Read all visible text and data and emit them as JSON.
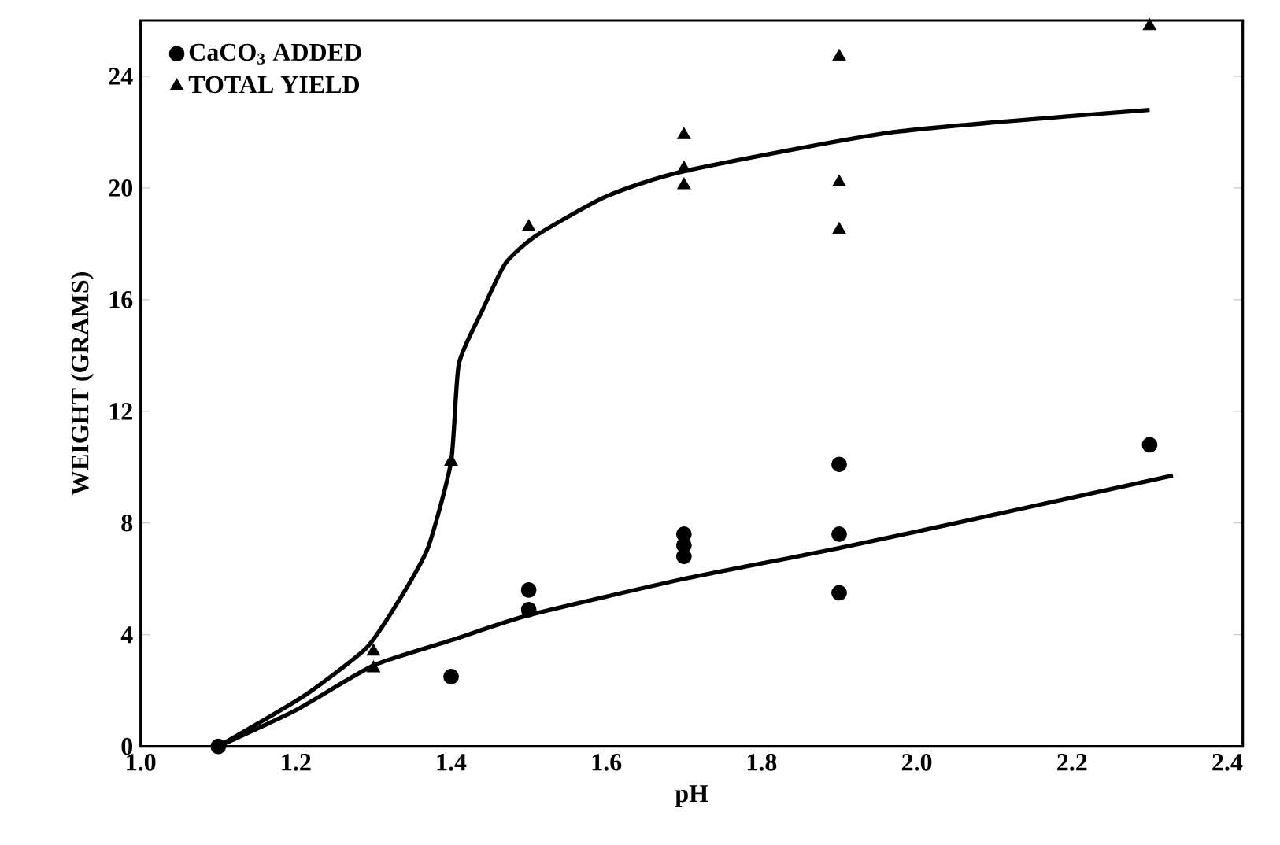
{
  "chart_data": {
    "type": "scatter",
    "xlabel": "pH",
    "ylabel": "WEIGHT (GRAMS)",
    "xlim": [
      1.0,
      2.42
    ],
    "ylim": [
      0,
      26
    ],
    "xticks": [
      {
        "value": 1.0,
        "label": "1.0"
      },
      1.2,
      1.4,
      1.6,
      1.8,
      {
        "value": 2.0,
        "label": "2.0"
      },
      2.2,
      2.4
    ],
    "yticks": [
      0,
      4,
      8,
      12,
      16,
      20,
      24
    ],
    "legend": "top left",
    "grid": false,
    "series": [
      {
        "name": "CaCO$_{3}$ ADDED",
        "marker": "circle",
        "color": "#000000",
        "x": [
          1.1,
          1.4,
          1.5,
          1.5,
          1.7,
          1.7,
          1.7,
          1.9,
          1.9,
          1.9,
          2.3
        ],
        "values": [
          0,
          2.5,
          5.6,
          4.9,
          7.6,
          7.2,
          6.8,
          10.1,
          7.6,
          5.5,
          10.8
        ]
      },
      {
        "name": "TOTAL YIELD",
        "marker": "triangle",
        "color": "#000000",
        "x": [
          1.3,
          1.3,
          1.4,
          1.5,
          1.7,
          1.7,
          1.7,
          1.9,
          1.9,
          1.9,
          2.3
        ],
        "values": [
          3.4,
          2.8,
          10.2,
          18.6,
          21.9,
          20.7,
          20.1,
          24.7,
          20.2,
          18.5,
          25.8
        ]
      },
      {
        "type": "line",
        "color": "#000000",
        "line_style": "solid",
        "marker": "none",
        "x": [
          1.1,
          1.21,
          1.29,
          1.33,
          1.37,
          1.4,
          1.41,
          1.44,
          1.47,
          1.51,
          1.6,
          1.7,
          1.97,
          2.3
        ],
        "values": [
          0,
          1.8,
          3.5,
          5.1,
          7.1,
          10.2,
          13.7,
          15.6,
          17.3,
          18.3,
          19.7,
          20.6,
          22.0,
          22.8
        ]
      },
      {
        "type": "line",
        "color": "#000000",
        "line_style": "solid",
        "marker": "none",
        "x": [
          1.1,
          1.2,
          1.3,
          1.4,
          1.5,
          1.7,
          1.9,
          2.1,
          2.33
        ],
        "values": [
          0,
          1.3,
          2.9,
          3.8,
          4.7,
          6.0,
          7.1,
          8.3,
          9.7
        ]
      }
    ]
  }
}
